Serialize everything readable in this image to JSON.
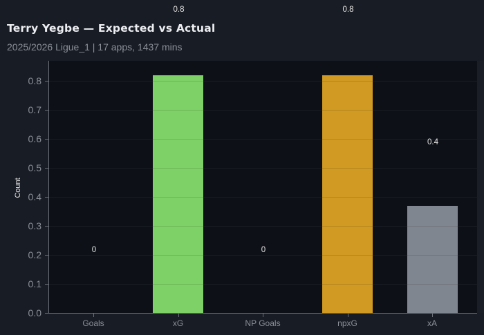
{
  "header": {
    "title": "Terry Yegbe — Expected vs Actual",
    "subtitle": "2025/2026 Ligue_1 | 17 apps, 1437 mins"
  },
  "colors": {
    "background": "#181c24",
    "plot_background": "#0d1017",
    "goals": "#7ed166",
    "xG": "#7ed166",
    "np_goals": "#d19a22",
    "npxG": "#d19a22",
    "xA": "#808690"
  },
  "chart_data": {
    "type": "bar",
    "title": "Terry Yegbe — Expected vs Actual",
    "subtitle": "2025/2026 Ligue_1 | 17 apps, 1437 mins",
    "categories": [
      "Goals",
      "xG",
      "NP Goals",
      "npxG",
      "xA"
    ],
    "values": [
      0,
      0.82,
      0,
      0.82,
      0.37
    ],
    "value_labels": [
      "0",
      "0.8",
      "0",
      "0.8",
      "0.4"
    ],
    "bar_colors": [
      "#7ed166",
      "#7ed166",
      "#d19a22",
      "#d19a22",
      "#808690"
    ],
    "xlabel": "",
    "ylabel": "Count",
    "ylim": [
      0,
      0.87
    ],
    "yticks": [
      "0.0",
      "0.1",
      "0.2",
      "0.3",
      "0.4",
      "0.5",
      "0.6",
      "0.7",
      "0.8"
    ],
    "grid": true,
    "legend": null
  }
}
